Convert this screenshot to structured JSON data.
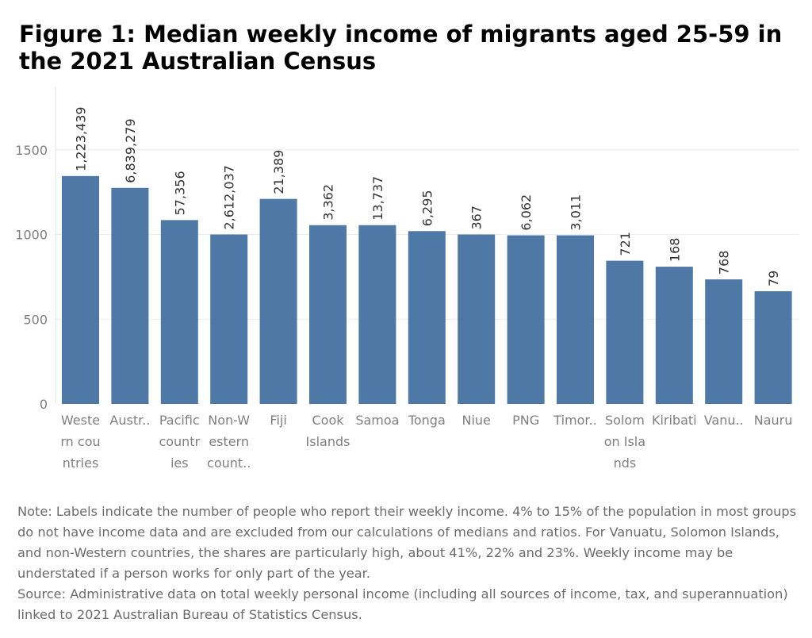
{
  "title": "Figure 1: Median weekly income of migrants aged 25-59 in the 2021 Australian Census",
  "note": "Note: Labels indicate the number of people who report their weekly income. 4% to 15% of the population in most groups do not have income data and are excluded from our calculations of medians and ratios. For Vanuatu, Solomon Islands, and non-Western countries, the shares are particularly high, about 41%, 22% and 23%. Weekly income may be understated if a person works for only part of the year.",
  "source": "Source: Administrative data on total weekly personal income (including all sources of income, tax, and superannuation) linked to 2021 Australian Bureau of Statistics Census.",
  "colors": {
    "bar": "#4e79a7",
    "axis_text": "#7f7f7f",
    "grid": "#ececec",
    "label": "#333333"
  },
  "chart_data": {
    "type": "bar",
    "title": "",
    "xlabel": "",
    "ylabel": "",
    "ylim": [
      0,
      1800
    ],
    "yticks": [
      0,
      500,
      1000,
      1500
    ],
    "grid": true,
    "categories": [
      "Western countries",
      "Austr..",
      "Pacific countries",
      "Non-Western count..",
      "Fiji",
      "Cook Islands",
      "Samoa",
      "Tonga",
      "Niue",
      "PNG",
      "Timor..",
      "Solomon Islands",
      "Kiribati",
      "Vanu..",
      "Nauru"
    ],
    "category_lines": [
      [
        "Weste",
        "rn cou",
        "ntries"
      ],
      [
        "Austr.."
      ],
      [
        "Pacific",
        "countr",
        "ies"
      ],
      [
        "Non-W",
        "estern",
        "count.."
      ],
      [
        "Fiji"
      ],
      [
        "Cook",
        "Islands"
      ],
      [
        "Samoa"
      ],
      [
        "Tonga"
      ],
      [
        "Niue"
      ],
      [
        "PNG"
      ],
      [
        "Timor.."
      ],
      [
        "Solom",
        "on Isla",
        "nds"
      ],
      [
        "Kiribati"
      ],
      [
        "Vanu.."
      ],
      [
        "Nauru"
      ]
    ],
    "values": [
      1345,
      1275,
      1085,
      1000,
      1210,
      1055,
      1055,
      1020,
      1000,
      995,
      995,
      845,
      810,
      735,
      665
    ],
    "data_labels": [
      "1,223,439",
      "6,839,279",
      "57,356",
      "2,612,037",
      "21,389",
      "3,362",
      "13,737",
      "6,295",
      "367",
      "6,062",
      "3,011",
      "721",
      "168",
      "768",
      "79"
    ]
  }
}
